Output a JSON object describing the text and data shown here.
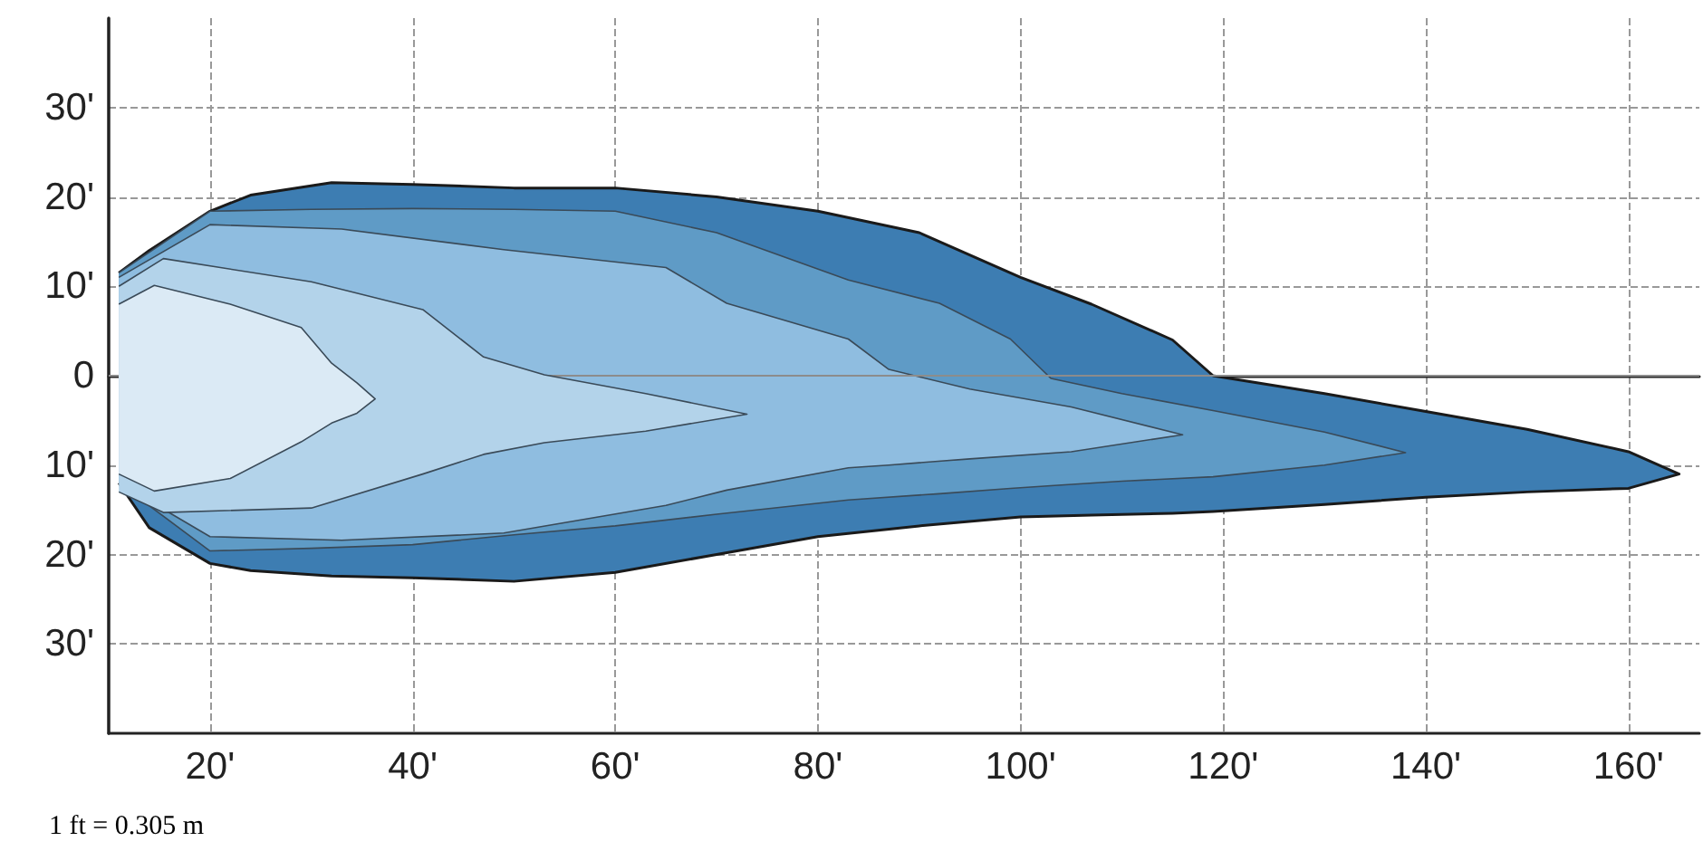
{
  "chart_data": {
    "type": "area",
    "xlim": [
      10,
      167
    ],
    "ylim": [
      -40,
      40
    ],
    "xticks": [
      {
        "value": 20,
        "label": "20'"
      },
      {
        "value": 40,
        "label": "40'"
      },
      {
        "value": 60,
        "label": "60'"
      },
      {
        "value": 80,
        "label": "80'"
      },
      {
        "value": 100,
        "label": "100'"
      },
      {
        "value": 120,
        "label": "120'"
      },
      {
        "value": 140,
        "label": "140'"
      },
      {
        "value": 160,
        "label": "160'"
      }
    ],
    "yticks": [
      {
        "value": 30,
        "label": "30'"
      },
      {
        "value": 20,
        "label": "20'"
      },
      {
        "value": 10,
        "label": "10'"
      },
      0,
      {
        "value": -10,
        "label": "10'"
      },
      {
        "value": -20,
        "label": "20'"
      },
      {
        "value": -30,
        "label": "30'"
      }
    ],
    "grid": true,
    "series": [
      {
        "color": "#3d7db2",
        "x": [
          11,
          14,
          20,
          24,
          32,
          40,
          50,
          60,
          70,
          80,
          90,
          100,
          107,
          115,
          119,
          130,
          140,
          150,
          160,
          165,
          160,
          150,
          140,
          130,
          119,
          115,
          107,
          100,
          90,
          80,
          70,
          60,
          50,
          40,
          32,
          24,
          20,
          14,
          11
        ],
        "values": [
          11.5,
          14,
          18.4,
          20.2,
          21.6,
          21.4,
          21,
          21,
          20,
          18.4,
          16,
          11,
          8,
          4,
          0,
          -2,
          -4,
          -6,
          -8.5,
          -11,
          -12.6,
          -13,
          -13.6,
          -14.4,
          -15.2,
          -15.4,
          -15.6,
          -15.8,
          -16.8,
          -18,
          -20,
          -22,
          -23,
          -22.6,
          -22.4,
          -21.8,
          -21,
          -17,
          -12
        ]
      },
      {
        "color": "#5f9bc6",
        "x": [
          11,
          20,
          30,
          40,
          50,
          60,
          70,
          83,
          92,
          99,
          103,
          110,
          119,
          130,
          138,
          130,
          119,
          110,
          103,
          99,
          92,
          83,
          70,
          60,
          50,
          40,
          30,
          20,
          11
        ],
        "values": [
          11.5,
          18.4,
          18.6,
          18.7,
          18.6,
          18.4,
          16,
          10.7,
          8.1,
          4.1,
          -0.3,
          -2,
          -3.9,
          -6.3,
          -8.6,
          -10,
          -11.3,
          -11.8,
          -12.3,
          -12.6,
          -13.2,
          -13.9,
          -15.5,
          -16.8,
          -17.8,
          -18.9,
          -19.3,
          -19.6,
          -12
        ]
      },
      {
        "color": "#8fbde0",
        "x": [
          11,
          20,
          33,
          49,
          65,
          71,
          83,
          87,
          95,
          105,
          116,
          105,
          95,
          87,
          83,
          71,
          65,
          49,
          33,
          20,
          11
        ],
        "values": [
          11,
          16.9,
          16.4,
          14.1,
          12.1,
          8.1,
          4.1,
          0.7,
          -1.5,
          -3.5,
          -6.6,
          -8.5,
          -9.3,
          -10,
          -10.3,
          -12.8,
          -14.5,
          -17.6,
          -18.4,
          -18,
          -12
        ]
      },
      {
        "color": "#b3d3ea",
        "x": [
          11,
          15.4,
          30,
          41,
          47,
          53,
          63,
          73,
          63,
          53,
          47,
          41,
          30,
          15.4,
          11
        ],
        "values": [
          10,
          13.1,
          10.5,
          7.4,
          2.1,
          0.1,
          -2,
          -4.3,
          -6.2,
          -7.5,
          -8.8,
          -11,
          -14.8,
          -15.3,
          -13
        ]
      },
      {
        "color": "#dbeaf5",
        "x": [
          11,
          14.5,
          22,
          29,
          32,
          34.5,
          36.3,
          34.5,
          32,
          29,
          22,
          14.5,
          11
        ],
        "values": [
          8,
          10.1,
          8,
          5.4,
          1.4,
          -0.8,
          -2.6,
          -4.2,
          -5.3,
          -7.4,
          -11.5,
          -12.9,
          -11
        ]
      }
    ],
    "ref_lines": [
      {
        "axis": "y",
        "value": 0,
        "color": "#8c8c8c"
      }
    ],
    "annotations": [
      "1 ft = 0.305 m"
    ]
  }
}
